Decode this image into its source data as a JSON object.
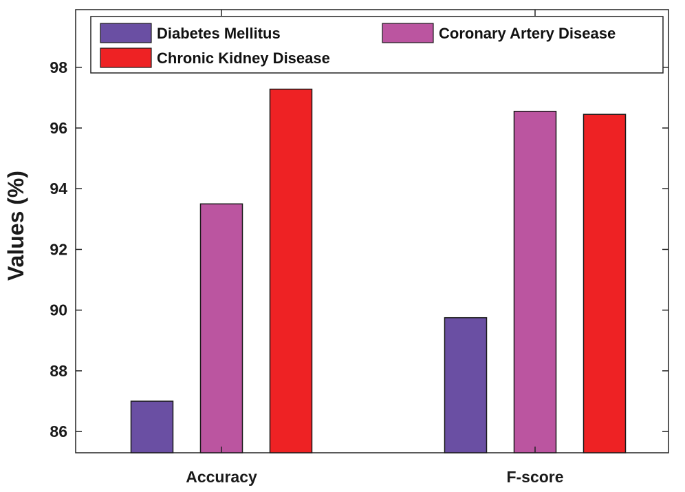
{
  "chart_data": {
    "type": "bar",
    "categories": [
      "Accuracy",
      "F-score"
    ],
    "series": [
      {
        "name": "Diabetes Mellitus",
        "values": [
          87.0,
          89.75
        ],
        "color": "#6a4fa3"
      },
      {
        "name": "Coronary Artery Disease",
        "values": [
          93.5,
          96.55
        ],
        "color": "#bb55a0"
      },
      {
        "name": "Chronic Kidney Disease",
        "values": [
          97.28,
          96.45
        ],
        "color": "#ee2224"
      }
    ],
    "ylabel": "Values (%)",
    "xlabel": "",
    "title": "",
    "ylim": [
      85.3,
      99.9
    ],
    "yticks": [
      86,
      88,
      90,
      92,
      94,
      96,
      98
    ],
    "grid": false,
    "legend_position": "top"
  }
}
